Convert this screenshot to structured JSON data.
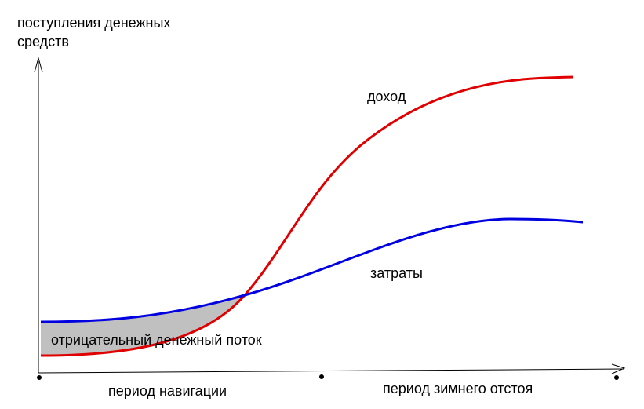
{
  "y_axis_label": {
    "line1": "поступления денежных",
    "line2": "средств"
  },
  "curves": {
    "income": {
      "label": "доход",
      "color": "#e00000"
    },
    "costs": {
      "label": "затраты",
      "color": "#0000e0"
    }
  },
  "region": {
    "label": "отрицательный денежный поток",
    "fill": "#c0c0c0"
  },
  "periods": {
    "navigation": "период навигации",
    "winter": "период зимнего отстоя"
  }
}
